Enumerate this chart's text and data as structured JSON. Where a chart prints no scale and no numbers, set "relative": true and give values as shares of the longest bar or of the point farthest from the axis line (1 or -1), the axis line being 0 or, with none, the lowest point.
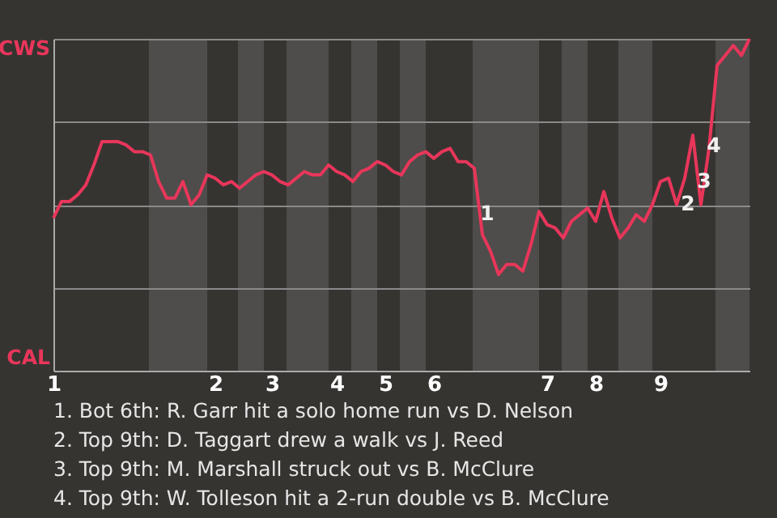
{
  "chart_data": {
    "type": "line",
    "relative": true,
    "grid": "y",
    "marker": "none",
    "line_style": "solid",
    "categories": [
      "1",
      null,
      null,
      null,
      null,
      null,
      null,
      null,
      null,
      null,
      null,
      null,
      null,
      null,
      null,
      null,
      null,
      null,
      null,
      null,
      "2",
      null,
      null,
      null,
      null,
      null,
      null,
      "3",
      null,
      null,
      null,
      null,
      null,
      null,
      null,
      "4",
      null,
      null,
      null,
      null,
      null,
      "5",
      null,
      null,
      null,
      null,
      null,
      "6",
      null,
      null,
      null,
      null,
      null,
      null,
      null,
      null,
      null,
      null,
      null,
      null,
      null,
      "7",
      null,
      null,
      null,
      null,
      null,
      "8",
      null,
      null,
      null,
      null,
      null,
      null,
      null,
      "9",
      null,
      null,
      null,
      null,
      null,
      null,
      null,
      null,
      null,
      null,
      null
    ],
    "series": [
      {
        "color": "#e8365a",
        "values": [
          0.46,
          0.51,
          0.51,
          0.53,
          0.56,
          0.62,
          0.69,
          0.69,
          0.69,
          0.68,
          0.66,
          0.66,
          0.65,
          0.57,
          0.52,
          0.52,
          0.57,
          0.5,
          0.53,
          0.59,
          0.58,
          0.56,
          0.57,
          0.55,
          0.57,
          0.59,
          0.6,
          0.59,
          0.57,
          0.56,
          0.58,
          0.6,
          0.59,
          0.59,
          0.62,
          0.6,
          0.59,
          0.57,
          0.6,
          0.61,
          0.63,
          0.62,
          0.6,
          0.59,
          0.63,
          0.65,
          0.66,
          0.64,
          0.66,
          0.67,
          0.63,
          0.63,
          0.61,
          0.41,
          0.36,
          0.29,
          0.32,
          0.32,
          0.3,
          0.38,
          0.48,
          0.44,
          0.43,
          0.4,
          0.45,
          0.47,
          0.49,
          0.45,
          0.54,
          0.46,
          0.4,
          0.43,
          0.47,
          0.45,
          0.5,
          0.57,
          0.58,
          0.5,
          0.58,
          0.71,
          0.5,
          0.67,
          0.92,
          0.95,
          0.98,
          0.95,
          1
        ]
      }
    ],
    "annotations": [
      "CWS",
      "CAL",
      "1",
      "2",
      "3",
      "4",
      "1. Bot 6th: R. Garr hit a solo home run vs D. Nelson",
      "2. Top 9th: D. Taggart drew a walk vs J. Reed",
      "3. Top 9th: M. Marshall struck out vs B. McClure",
      "4. Top 9th: W. Tolleson hit a 2-run double vs B. McClure"
    ]
  }
}
